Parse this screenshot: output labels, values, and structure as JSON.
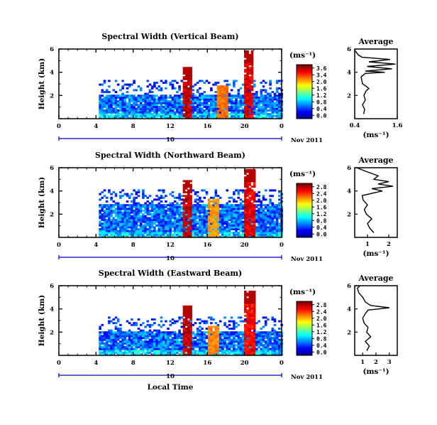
{
  "chart_data": [
    {
      "type": "heatmap",
      "title": "Spectral Width (Vertical Beam)",
      "ylabel": "Height (km)",
      "xlabel": "",
      "x_range": [
        0,
        24
      ],
      "x_ticks": [
        "0",
        "4",
        "8",
        "12",
        "16",
        "20",
        "0"
      ],
      "y_range": [
        0,
        6
      ],
      "y_ticks": [
        "2",
        "4",
        "6"
      ],
      "date_label": "Nov 2011",
      "date_day": "10",
      "colorbar": {
        "unit": "(ms⁻¹)",
        "range": [
          0.0,
          3.6
        ],
        "ticks": [
          "3.6",
          "3.4",
          "2.0",
          "1.6",
          "1.2",
          "0.8",
          "0.4",
          "0.0"
        ]
      },
      "profile": {
        "title": "Average",
        "xlabel": "(ms⁻¹)",
        "x_range": [
          0.4,
          1.6
        ],
        "x_ticks": [
          "0.4",
          "1.6"
        ],
        "y_range": [
          0,
          6
        ],
        "y_ticks": [
          "2",
          "4",
          "6"
        ],
        "points": [
          [
            0.65,
            0.4
          ],
          [
            0.68,
            0.8
          ],
          [
            0.62,
            1.2
          ],
          [
            0.7,
            1.6
          ],
          [
            0.66,
            2.0
          ],
          [
            0.72,
            2.4
          ],
          [
            0.8,
            2.6
          ],
          [
            0.72,
            2.8
          ],
          [
            0.62,
            3.0
          ],
          [
            0.6,
            3.3
          ],
          [
            0.58,
            3.6
          ],
          [
            0.7,
            3.9
          ],
          [
            1.25,
            4.0
          ],
          [
            0.7,
            4.1
          ],
          [
            1.45,
            4.3
          ],
          [
            0.75,
            4.5
          ],
          [
            1.55,
            4.7
          ],
          [
            0.8,
            4.9
          ],
          [
            1.4,
            5.1
          ],
          [
            0.6,
            5.3
          ],
          [
            0.5,
            5.5
          ],
          [
            0.45,
            5.7
          ],
          [
            0.4,
            5.9
          ]
        ]
      },
      "features": {
        "data_start_hour": 4.3,
        "main_layer_top_km": 2.2,
        "plumes": [
          {
            "hour": 13.7,
            "top_km": 4.6,
            "strength": 1.0
          },
          {
            "hour": 17.5,
            "top_km": 3.0,
            "strength": 0.55
          },
          {
            "hour": 20.3,
            "top_km": 6.0,
            "strength": 0.9
          }
        ]
      }
    },
    {
      "type": "heatmap",
      "title": "Spectral Width (Northward Beam)",
      "ylabel": "Height (km)",
      "xlabel": "",
      "x_range": [
        0,
        24
      ],
      "x_ticks": [
        "0",
        "4",
        "8",
        "12",
        "16",
        "20",
        "0"
      ],
      "y_range": [
        0,
        6
      ],
      "y_ticks": [
        "2",
        "4",
        "6"
      ],
      "date_label": "Nov 2011",
      "date_day": "10",
      "colorbar": {
        "unit": "(ms⁻¹)",
        "range": [
          0.0,
          2.8
        ],
        "ticks": [
          "2.8",
          "2.4",
          "2.0",
          "1.6",
          "1.2",
          "0.8",
          "0.4",
          "0.0"
        ]
      },
      "profile": {
        "title": "Average",
        "xlabel": "(ms⁻¹)",
        "x_range": [
          0.4,
          2.4
        ],
        "x_ticks": [
          "1",
          "2"
        ],
        "y_range": [
          0,
          6
        ],
        "y_ticks": [
          "2",
          "4",
          "6"
        ],
        "points": [
          [
            1.3,
            0.4
          ],
          [
            1.1,
            0.8
          ],
          [
            1.0,
            1.2
          ],
          [
            1.2,
            1.6
          ],
          [
            0.95,
            2.0
          ],
          [
            0.85,
            2.4
          ],
          [
            1.0,
            2.8
          ],
          [
            0.8,
            3.2
          ],
          [
            0.75,
            3.6
          ],
          [
            1.7,
            4.0
          ],
          [
            1.2,
            4.2
          ],
          [
            2.2,
            4.4
          ],
          [
            1.5,
            4.6
          ],
          [
            2.0,
            4.8
          ],
          [
            1.3,
            5.0
          ],
          [
            1.5,
            5.3
          ],
          [
            0.9,
            5.7
          ],
          [
            0.5,
            6.0
          ]
        ]
      },
      "features": {
        "data_start_hour": 4.3,
        "main_layer_top_km": 3.0,
        "plumes": [
          {
            "hour": 13.7,
            "top_km": 5.0,
            "strength": 1.0
          },
          {
            "hour": 16.5,
            "top_km": 3.4,
            "strength": 0.45
          },
          {
            "hour": 20.4,
            "top_km": 6.0,
            "strength": 0.9
          }
        ]
      }
    },
    {
      "type": "heatmap",
      "title": "Spectral Width (Eastward Beam)",
      "ylabel": "Height (km)",
      "xlabel": "Local Time",
      "x_range": [
        0,
        24
      ],
      "x_ticks": [
        "0",
        "4",
        "8",
        "12",
        "16",
        "20",
        "0"
      ],
      "y_range": [
        0,
        6
      ],
      "y_ticks": [
        "2",
        "4",
        "6"
      ],
      "date_label": "Nov 2011",
      "date_day": "10",
      "colorbar": {
        "unit": "(ms⁻¹)",
        "range": [
          0.0,
          2.8
        ],
        "ticks": [
          "2.8",
          "2.4",
          "2.0",
          "1.6",
          "1.2",
          "0.8",
          "0.4",
          "0.0"
        ]
      },
      "profile": {
        "title": "Average",
        "xlabel": "(ms⁻¹)",
        "x_range": [
          0.4,
          3.6
        ],
        "x_ticks": [
          "1",
          "2",
          "3"
        ],
        "y_range": [
          0,
          6
        ],
        "y_ticks": [
          "2",
          "4",
          "6"
        ],
        "points": [
          [
            1.3,
            0.4
          ],
          [
            1.5,
            0.8
          ],
          [
            1.2,
            1.2
          ],
          [
            1.6,
            1.6
          ],
          [
            1.3,
            2.0
          ],
          [
            1.4,
            2.4
          ],
          [
            1.1,
            2.8
          ],
          [
            1.0,
            3.2
          ],
          [
            1.2,
            3.6
          ],
          [
            1.4,
            3.9
          ],
          [
            2.2,
            4.0
          ],
          [
            3.0,
            4.1
          ],
          [
            1.6,
            4.3
          ],
          [
            1.2,
            4.6
          ],
          [
            1.0,
            5.0
          ],
          [
            0.7,
            5.4
          ],
          [
            0.6,
            5.8
          ],
          [
            0.8,
            6.0
          ]
        ]
      },
      "features": {
        "data_start_hour": 4.3,
        "main_layer_top_km": 2.2,
        "plumes": [
          {
            "hour": 13.7,
            "top_km": 4.3,
            "strength": 1.0
          },
          {
            "hour": 16.5,
            "top_km": 2.6,
            "strength": 0.5
          },
          {
            "hour": 20.4,
            "top_km": 5.7,
            "strength": 0.85
          }
        ]
      }
    }
  ]
}
